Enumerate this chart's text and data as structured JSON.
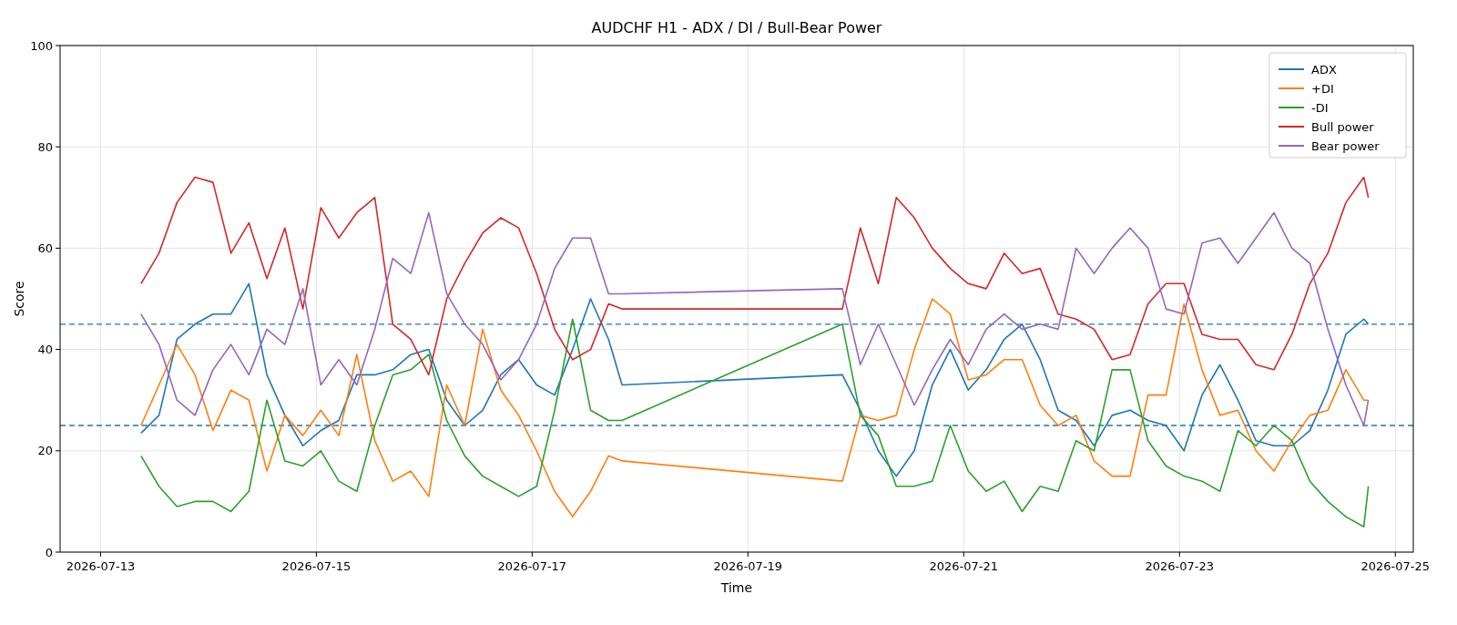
{
  "chart_data": {
    "type": "line",
    "title": "AUDCHF H1 - ADX / DI / Bull-Bear Power",
    "xlabel": "Time",
    "ylabel": "Score",
    "x": [
      "2026-07-13T09:00",
      "2026-07-13T13:00",
      "2026-07-13T17:00",
      "2026-07-13T21:00",
      "2026-07-14T01:00",
      "2026-07-14T05:00",
      "2026-07-14T09:00",
      "2026-07-14T13:00",
      "2026-07-14T17:00",
      "2026-07-14T21:00",
      "2026-07-15T01:00",
      "2026-07-15T05:00",
      "2026-07-15T09:00",
      "2026-07-15T13:00",
      "2026-07-15T17:00",
      "2026-07-15T21:00",
      "2026-07-16T01:00",
      "2026-07-16T05:00",
      "2026-07-16T09:00",
      "2026-07-16T13:00",
      "2026-07-16T17:00",
      "2026-07-16T21:00",
      "2026-07-17T01:00",
      "2026-07-17T05:00",
      "2026-07-17T09:00",
      "2026-07-17T13:00",
      "2026-07-17T17:00",
      "2026-07-17T20:00",
      "2026-07-19T21:00",
      "2026-07-20T01:00",
      "2026-07-20T05:00",
      "2026-07-20T09:00",
      "2026-07-20T13:00",
      "2026-07-20T17:00",
      "2026-07-20T21:00",
      "2026-07-21T01:00",
      "2026-07-21T05:00",
      "2026-07-21T09:00",
      "2026-07-21T13:00",
      "2026-07-21T17:00",
      "2026-07-21T21:00",
      "2026-07-22T01:00",
      "2026-07-22T05:00",
      "2026-07-22T09:00",
      "2026-07-22T13:00",
      "2026-07-22T17:00",
      "2026-07-22T21:00",
      "2026-07-23T01:00",
      "2026-07-23T05:00",
      "2026-07-23T09:00",
      "2026-07-23T13:00",
      "2026-07-23T17:00",
      "2026-07-23T21:00",
      "2026-07-24T01:00",
      "2026-07-24T05:00",
      "2026-07-24T09:00",
      "2026-07-24T13:00",
      "2026-07-24T17:00",
      "2026-07-24T18:00"
    ],
    "series": [
      {
        "name": "ADX",
        "color": "#1f77b4",
        "values": [
          23.5,
          27,
          42,
          45,
          47,
          47,
          53,
          35,
          27,
          21,
          24,
          26,
          35,
          35,
          36,
          39,
          40,
          30,
          25,
          28,
          35,
          38,
          33,
          31,
          40,
          50,
          42,
          33,
          35,
          28,
          20,
          15,
          20,
          33,
          40,
          32,
          36,
          42,
          45,
          38,
          28,
          26,
          21,
          27,
          28,
          26,
          25,
          20,
          31,
          37,
          30,
          22,
          21,
          21,
          24,
          32,
          43,
          46,
          45
        ]
      },
      {
        "name": "+DI",
        "color": "#ff7f0e",
        "values": [
          25,
          33,
          41,
          35,
          24,
          32,
          30,
          16,
          27,
          23,
          28,
          23,
          39,
          22,
          14,
          16,
          11,
          33,
          25,
          44,
          32,
          27,
          20,
          12,
          7,
          12,
          19,
          18,
          14,
          27,
          26,
          27,
          40,
          50,
          47,
          34,
          35,
          38,
          38,
          29,
          25,
          27,
          18,
          15,
          15,
          31,
          31,
          49,
          36,
          27,
          28,
          20,
          16,
          22,
          27,
          28,
          36,
          30,
          30
        ]
      },
      {
        "name": "-DI",
        "color": "#2ca02c",
        "values": [
          19,
          13,
          9,
          10,
          10,
          8,
          12,
          30,
          18,
          17,
          20,
          14,
          12,
          25,
          35,
          36,
          39,
          26,
          19,
          15,
          13,
          11,
          13,
          28,
          46,
          28,
          26,
          26,
          45,
          27,
          23,
          13,
          13,
          14,
          25,
          16,
          12,
          14,
          8,
          13,
          12,
          22,
          20,
          36,
          36,
          22,
          17,
          15,
          14,
          12,
          24,
          21,
          25,
          22,
          14,
          10,
          7,
          5,
          13
        ]
      },
      {
        "name": "Bull power",
        "color": "#d62728",
        "values": [
          53,
          59,
          69,
          74,
          73,
          59,
          65,
          54,
          64,
          48,
          68,
          62,
          67,
          70,
          45,
          42,
          35,
          50,
          57,
          63,
          66,
          64,
          55,
          44,
          38,
          40,
          49,
          48,
          48,
          64,
          53,
          70,
          66,
          60,
          56,
          53,
          52,
          59,
          55,
          56,
          47,
          46,
          44,
          38,
          39,
          49,
          53,
          53,
          43,
          42,
          42,
          37,
          36,
          43,
          53,
          59,
          69,
          74,
          70
        ]
      },
      {
        "name": "Bear power",
        "color": "#9467bd",
        "values": [
          47,
          41,
          30,
          27,
          36,
          41,
          35,
          44,
          41,
          52,
          33,
          38,
          33,
          44,
          58,
          55,
          67,
          51,
          45,
          41,
          34,
          38,
          45,
          56,
          62,
          62,
          51,
          51,
          52,
          37,
          45,
          37,
          29,
          36,
          42,
          37,
          44,
          47,
          44,
          45,
          44,
          60,
          55,
          60,
          64,
          60,
          48,
          47,
          61,
          62,
          57,
          62,
          67,
          60,
          57,
          44,
          33,
          25,
          30
        ]
      }
    ],
    "xlim": [
      "2026-07-12T15:00",
      "2026-07-25T04:00"
    ],
    "xticks": [
      "2026-07-13",
      "2026-07-15",
      "2026-07-17",
      "2026-07-19",
      "2026-07-21",
      "2026-07-23",
      "2026-07-25"
    ],
    "ylim": [
      0,
      100
    ],
    "yticks": [
      0,
      20,
      40,
      60,
      80,
      100
    ],
    "ref_lines": [
      {
        "axis": "y",
        "value": 45,
        "color": "#1f77b4",
        "line_style": "dashed"
      },
      {
        "axis": "y",
        "value": 25,
        "color": "#1f77b4",
        "line_style": "dashed"
      }
    ],
    "grid": true,
    "legend": "top right",
    "line_style": "solid",
    "marker": "none"
  }
}
